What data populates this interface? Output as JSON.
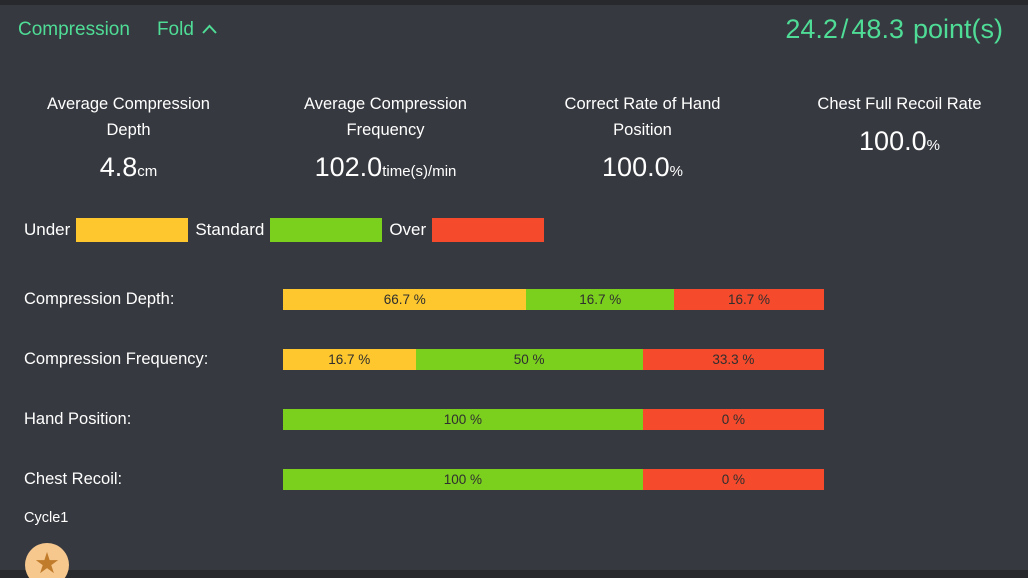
{
  "colors": {
    "page_background": "#27292d",
    "panel_background": "#36393f",
    "accent_green": "#4fdc96",
    "text_white": "#ffffff",
    "under_yellow": "#fdc72d",
    "standard_green": "#7bd01e",
    "over_red": "#f64a2c",
    "bar_label_text": "#2f2f2f",
    "star_badge_background": "#f6c88e",
    "star_icon": "#c07b2b"
  },
  "header": {
    "title": "Compression",
    "fold_label": "Fold",
    "fold_icon": "chevron-up-icon",
    "score": {
      "current": "24.2",
      "separator": "/",
      "total": "48.3",
      "unit": "point(s)"
    }
  },
  "metrics": [
    {
      "title": "Average Compression Depth",
      "value": "4.8",
      "unit": "cm"
    },
    {
      "title": "Average Compression Frequency",
      "value": "102.0",
      "unit": "time(s)/min"
    },
    {
      "title": "Correct Rate of Hand Position",
      "value": "100.0",
      "unit": "%"
    },
    {
      "title": "Chest Full Recoil Rate",
      "value": "100.0",
      "unit": "%"
    }
  ],
  "legend": [
    {
      "label": "Under",
      "color_key": "under_yellow"
    },
    {
      "label": "Standard",
      "color_key": "standard_green"
    },
    {
      "label": "Over",
      "color_key": "over_red"
    }
  ],
  "chart_data": {
    "type": "bar",
    "orientation": "horizontal_stacked",
    "unit": "%",
    "legend_position": "top",
    "categories": [
      "Compression Depth",
      "Compression Frequency",
      "Hand Position",
      "Chest Recoil"
    ],
    "series": [
      {
        "name": "Under",
        "values": [
          66.7,
          16.7,
          null,
          null
        ]
      },
      {
        "name": "Standard",
        "values": [
          16.7,
          50,
          100,
          100
        ]
      },
      {
        "name": "Over",
        "values": [
          16.7,
          33.3,
          0,
          0
        ]
      }
    ],
    "rows": [
      {
        "label": "Compression Depth:",
        "segments": [
          {
            "name": "Under",
            "value": 66.7,
            "value_label": "66.7 %",
            "color_key": "under_yellow",
            "display_width_pct": 45.0
          },
          {
            "name": "Standard",
            "value": 16.7,
            "value_label": "16.7 %",
            "color_key": "standard_green",
            "display_width_pct": 27.3
          },
          {
            "name": "Over",
            "value": 16.7,
            "value_label": "16.7 %",
            "color_key": "over_red",
            "display_width_pct": 27.7
          }
        ]
      },
      {
        "label": "Compression Frequency:",
        "segments": [
          {
            "name": "Under",
            "value": 16.7,
            "value_label": "16.7 %",
            "color_key": "under_yellow",
            "display_width_pct": 24.5
          },
          {
            "name": "Standard",
            "value": 50,
            "value_label": "50 %",
            "color_key": "standard_green",
            "display_width_pct": 42.0
          },
          {
            "name": "Over",
            "value": 33.3,
            "value_label": "33.3 %",
            "color_key": "over_red",
            "display_width_pct": 33.5
          }
        ]
      },
      {
        "label": "Hand Position:",
        "segments": [
          {
            "name": "Standard",
            "value": 100,
            "value_label": "100 %",
            "color_key": "standard_green",
            "display_width_pct": 66.5
          },
          {
            "name": "Over",
            "value": 0,
            "value_label": "0 %",
            "color_key": "over_red",
            "display_width_pct": 33.5
          }
        ]
      },
      {
        "label": "Chest Recoil:",
        "segments": [
          {
            "name": "Standard",
            "value": 100,
            "value_label": "100 %",
            "color_key": "standard_green",
            "display_width_pct": 66.5
          },
          {
            "name": "Over",
            "value": 0,
            "value_label": "0 %",
            "color_key": "over_red",
            "display_width_pct": 33.5
          }
        ]
      }
    ]
  },
  "footer": {
    "cycle_label": "Cycle1",
    "star_glyph": "★",
    "star_icon": "star-icon"
  }
}
